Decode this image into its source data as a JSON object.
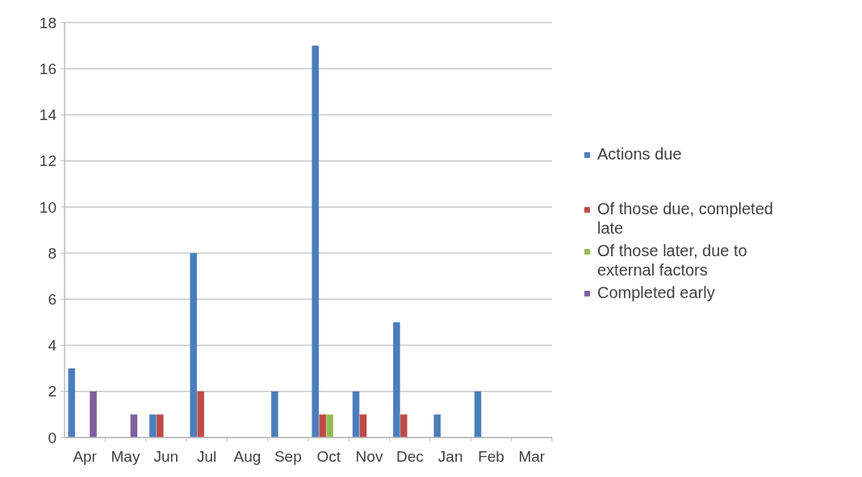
{
  "chart_data": {
    "type": "bar",
    "categories": [
      "Apr",
      "May",
      "Jun",
      "Jul",
      "Aug",
      "Sep",
      "Oct",
      "Nov",
      "Dec",
      "Jan",
      "Feb",
      "Mar"
    ],
    "series": [
      {
        "name": "Actions due",
        "color": "#4a7ebb",
        "values": [
          3,
          null,
          1,
          8,
          null,
          2,
          17,
          2,
          5,
          1,
          2,
          null
        ]
      },
      {
        "name": "Of those due, completed late",
        "color": "#be4b48",
        "values": [
          null,
          null,
          1,
          2,
          null,
          null,
          1,
          1,
          1,
          null,
          null,
          null
        ]
      },
      {
        "name": "Of those later, due to external factors",
        "color": "#98b954",
        "values": [
          null,
          null,
          null,
          null,
          null,
          null,
          1,
          null,
          null,
          null,
          null,
          null
        ]
      },
      {
        "name": "Completed early",
        "color": "#7d60a0",
        "values": [
          2,
          1,
          null,
          null,
          null,
          null,
          null,
          null,
          null,
          null,
          null,
          null
        ]
      }
    ],
    "ylim": [
      0,
      18
    ],
    "yticks": [
      0,
      2,
      4,
      6,
      8,
      10,
      12,
      14,
      16,
      18
    ],
    "grid": "y",
    "legend": "right"
  }
}
